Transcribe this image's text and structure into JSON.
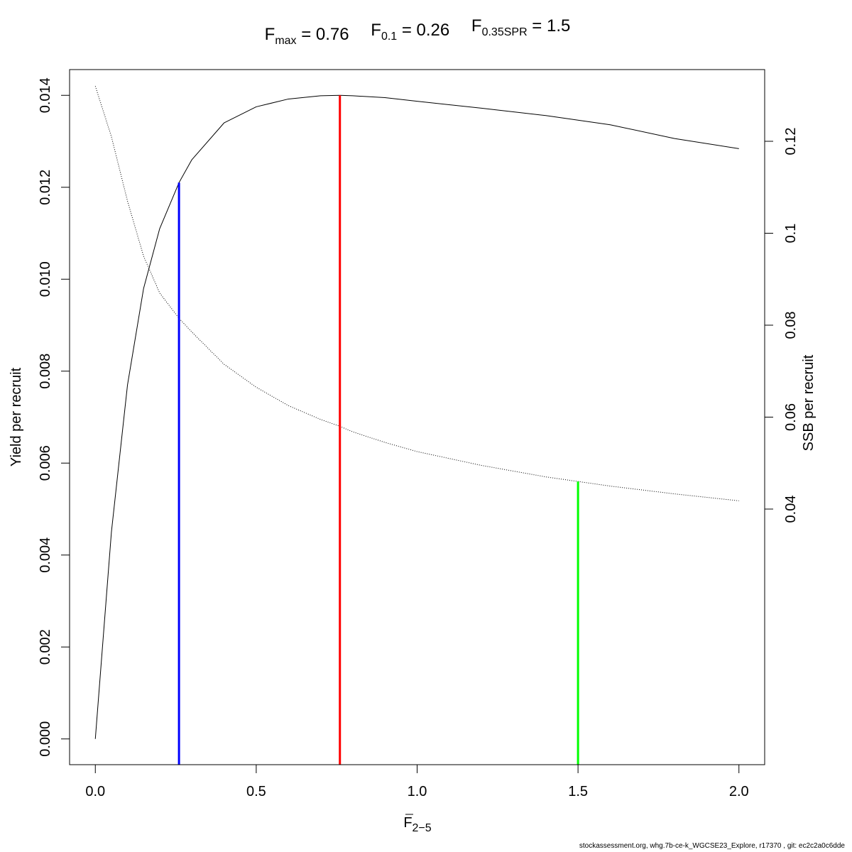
{
  "chart_data": {
    "type": "line",
    "title_parts": [
      {
        "main": "F",
        "sub": "max",
        "op": " = ",
        "value": "0.76"
      },
      {
        "main": "F",
        "sub": "0.1",
        "op": " = ",
        "value": "0.26"
      },
      {
        "main": "F",
        "sub": "0.35SPR",
        "op": " = ",
        "value": "1.5"
      }
    ],
    "xlabel": {
      "main": "F",
      "sub": "2−5"
    },
    "ylabel_left": "Yield per recruit",
    "ylabel_right": "SSB per recruit",
    "xlim": [
      -0.08,
      2.08
    ],
    "ylim_left": [
      -0.00056,
      0.01456
    ],
    "ylim_right": [
      -0.0156,
      0.1356
    ],
    "x_ticks": [
      0.0,
      0.5,
      1.0,
      1.5,
      2.0
    ],
    "x_tick_labels": [
      "0.0",
      "0.5",
      "1.0",
      "1.5",
      "2.0"
    ],
    "y_left_ticks": [
      0.0,
      0.002,
      0.004,
      0.006,
      0.008,
      0.01,
      0.012,
      0.014
    ],
    "y_left_tick_labels": [
      "0.000",
      "0.002",
      "0.004",
      "0.006",
      "0.008",
      "0.010",
      "0.012",
      "0.014"
    ],
    "y_right_ticks": [
      0.04,
      0.06,
      0.08,
      0.1,
      0.12
    ],
    "y_right_tick_labels": [
      "0.04",
      "0.06",
      "0.08",
      "0.1",
      "0.12"
    ],
    "grid": false,
    "legend": "none",
    "series": [
      {
        "axis": "left",
        "style": "solid",
        "color": "#000000",
        "x": [
          0.0,
          0.05,
          0.1,
          0.15,
          0.2,
          0.26,
          0.3,
          0.4,
          0.5,
          0.6,
          0.7,
          0.76,
          0.8,
          0.9,
          1.0,
          1.2,
          1.4,
          1.6,
          1.8,
          2.0
        ],
        "y": [
          0.0,
          0.0045,
          0.0077,
          0.0098,
          0.0111,
          0.0121,
          0.0126,
          0.0134,
          0.01375,
          0.01392,
          0.01399,
          0.014,
          0.01399,
          0.01395,
          0.01387,
          0.01372,
          0.01356,
          0.01336,
          0.01306,
          0.01284
        ]
      },
      {
        "axis": "right",
        "style": "dotted",
        "color": "#000000",
        "x": [
          0.0,
          0.05,
          0.1,
          0.15,
          0.2,
          0.26,
          0.3,
          0.4,
          0.5,
          0.6,
          0.7,
          0.76,
          0.8,
          0.9,
          1.0,
          1.2,
          1.4,
          1.5,
          1.6,
          1.8,
          2.0
        ],
        "y": [
          0.132,
          0.121,
          0.107,
          0.095,
          0.087,
          0.0815,
          0.0785,
          0.0715,
          0.0665,
          0.0625,
          0.0595,
          0.058,
          0.0568,
          0.0545,
          0.0525,
          0.0495,
          0.047,
          0.046,
          0.045,
          0.0433,
          0.0418
        ]
      }
    ],
    "reference_lines": [
      {
        "name": "F0.1",
        "x": 0.26,
        "y_top": 0.0121,
        "color": "#0000ff"
      },
      {
        "name": "Fmax",
        "x": 0.76,
        "y_top": 0.014,
        "color": "#ff0000"
      },
      {
        "name": "F0.35SPR",
        "x": 1.5,
        "y_top_right": 0.046,
        "color": "#00ff00"
      }
    ]
  },
  "footer": "stockassessment.org, whg.7b-ce-k_WGCSE23_Explore, r17370 , git: ec2c2a0c6dde"
}
